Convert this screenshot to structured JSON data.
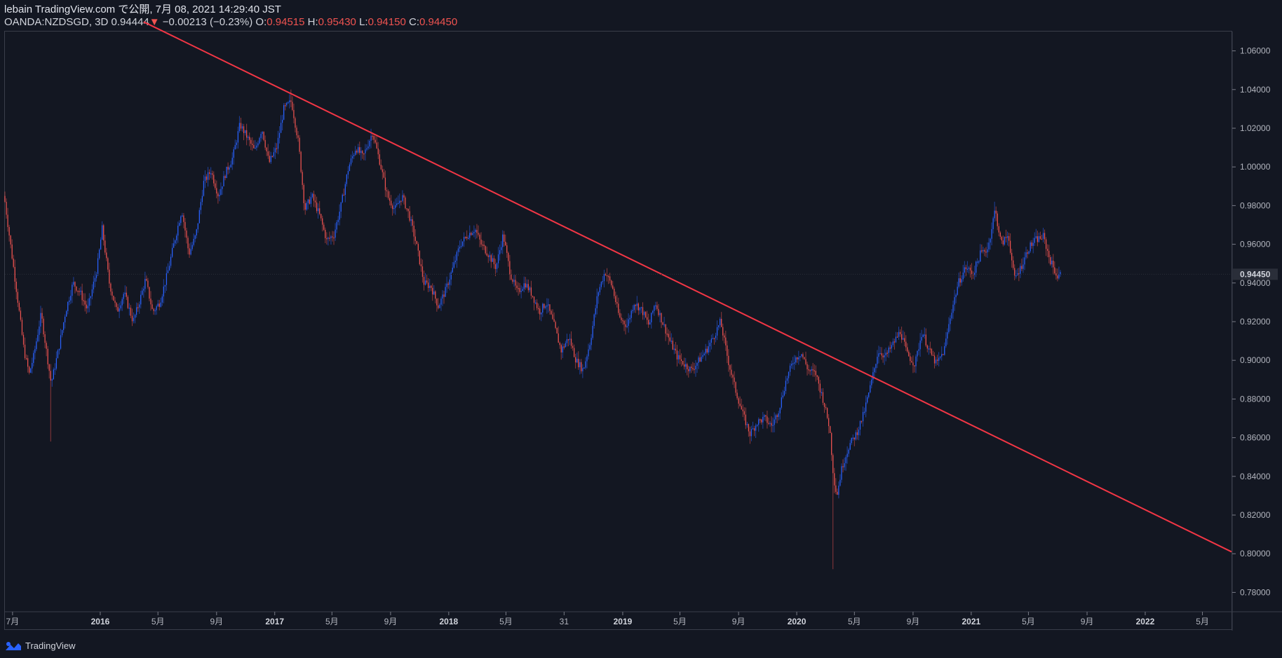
{
  "header": {
    "line1": "lebain TradingView.com で公開, 7月 08, 2021 14:29:40 JST",
    "symbol": "OANDA:NZDSGD, 3D",
    "last": "0.94444",
    "change_arrow": "▼",
    "change": "−0.00213 (−0.23%)",
    "o_label": "O:",
    "o": "0.94515",
    "h_label": "H:",
    "h": "0.95430",
    "l_label": "L:",
    "l": "0.94150",
    "c_label": "C:",
    "c": "0.94450"
  },
  "footer": {
    "brand": "TradingView",
    "logo_icon": "tradingview-logo-icon"
  },
  "colors": {
    "background": "#131722",
    "up": "#2962ff",
    "down": "#ef5350",
    "trendline": "#f23645",
    "axis_text": "#b2b5be"
  },
  "chart_data": {
    "type": "candlestick",
    "symbol": "OANDA:NZDSGD",
    "interval": "3D",
    "ylim": [
      0.77,
      1.07
    ],
    "yticks": [
      "1.06000",
      "1.04000",
      "1.02000",
      "1.00000",
      "0.98000",
      "0.96000",
      "0.94000",
      "0.92000",
      "0.90000",
      "0.88000",
      "0.86000",
      "0.84000",
      "0.82000",
      "0.80000",
      "0.78000"
    ],
    "last_price_label": "0.94450",
    "last_price": 0.9445,
    "x_range": [
      "2015-06-15",
      "2022-07-01"
    ],
    "xticks": [
      {
        "label": "7月",
        "date": "2015-07-01",
        "bold": false
      },
      {
        "label": "2016",
        "date": "2016-01-01",
        "bold": true
      },
      {
        "label": "5月",
        "date": "2016-05-01",
        "bold": false
      },
      {
        "label": "9月",
        "date": "2016-09-01",
        "bold": false
      },
      {
        "label": "2017",
        "date": "2017-01-01",
        "bold": true
      },
      {
        "label": "5月",
        "date": "2017-05-01",
        "bold": false
      },
      {
        "label": "9月",
        "date": "2017-09-01",
        "bold": false
      },
      {
        "label": "2018",
        "date": "2018-01-01",
        "bold": true
      },
      {
        "label": "5月",
        "date": "2018-05-01",
        "bold": false
      },
      {
        "label": "31",
        "date": "2018-08-31",
        "bold": false
      },
      {
        "label": "2019",
        "date": "2019-01-01",
        "bold": true
      },
      {
        "label": "5月",
        "date": "2019-05-01",
        "bold": false
      },
      {
        "label": "9月",
        "date": "2019-09-01",
        "bold": false
      },
      {
        "label": "2020",
        "date": "2020-01-01",
        "bold": true
      },
      {
        "label": "5月",
        "date": "2020-05-01",
        "bold": false
      },
      {
        "label": "9月",
        "date": "2020-09-01",
        "bold": false
      },
      {
        "label": "2021",
        "date": "2021-01-01",
        "bold": true
      },
      {
        "label": "5月",
        "date": "2021-05-01",
        "bold": false
      },
      {
        "label": "9月",
        "date": "2021-09-01",
        "bold": false
      },
      {
        "label": "2022",
        "date": "2022-01-01",
        "bold": true
      },
      {
        "label": "5月",
        "date": "2022-05-01",
        "bold": false
      }
    ],
    "trendline": {
      "start": {
        "date": "2016-04-01",
        "price": 1.075
      },
      "end": {
        "date": "2022-07-01",
        "price": 0.801
      }
    },
    "close_path": [
      [
        "2015-06-15",
        0.982
      ],
      [
        "2015-06-25",
        0.963
      ],
      [
        "2015-07-10",
        0.935
      ],
      [
        "2015-07-25",
        0.905
      ],
      [
        "2015-08-05",
        0.893
      ],
      [
        "2015-08-15",
        0.903
      ],
      [
        "2015-08-30",
        0.924
      ],
      [
        "2015-09-10",
        0.905
      ],
      [
        "2015-09-20",
        0.888
      ],
      [
        "2015-10-05",
        0.905
      ],
      [
        "2015-10-20",
        0.925
      ],
      [
        "2015-11-05",
        0.94
      ],
      [
        "2015-11-20",
        0.935
      ],
      [
        "2015-12-05",
        0.926
      ],
      [
        "2015-12-25",
        0.947
      ],
      [
        "2016-01-05",
        0.968
      ],
      [
        "2016-01-20",
        0.94
      ],
      [
        "2016-02-05",
        0.925
      ],
      [
        "2016-02-20",
        0.935
      ],
      [
        "2016-03-10",
        0.92
      ],
      [
        "2016-03-25",
        0.932
      ],
      [
        "2016-04-05",
        0.942
      ],
      [
        "2016-04-20",
        0.925
      ],
      [
        "2016-05-05",
        0.93
      ],
      [
        "2016-05-20",
        0.944
      ],
      [
        "2016-06-05",
        0.962
      ],
      [
        "2016-06-20",
        0.978
      ],
      [
        "2016-07-05",
        0.955
      ],
      [
        "2016-07-20",
        0.965
      ],
      [
        "2016-08-05",
        0.992
      ],
      [
        "2016-08-20",
        0.998
      ],
      [
        "2016-09-05",
        0.985
      ],
      [
        "2016-09-20",
        0.997
      ],
      [
        "2016-10-05",
        1.005
      ],
      [
        "2016-10-20",
        1.022
      ],
      [
        "2016-11-05",
        1.015
      ],
      [
        "2016-11-20",
        1.008
      ],
      [
        "2016-12-05",
        1.02
      ],
      [
        "2016-12-20",
        1.002
      ],
      [
        "2017-01-05",
        1.01
      ],
      [
        "2017-01-20",
        1.03
      ],
      [
        "2017-02-05",
        1.034
      ],
      [
        "2017-02-20",
        1.012
      ],
      [
        "2017-03-05",
        0.978
      ],
      [
        "2017-03-20",
        0.985
      ],
      [
        "2017-04-05",
        0.975
      ],
      [
        "2017-04-20",
        0.962
      ],
      [
        "2017-05-05",
        0.965
      ],
      [
        "2017-05-20",
        0.98
      ],
      [
        "2017-06-05",
        1.0
      ],
      [
        "2017-06-20",
        1.01
      ],
      [
        "2017-07-05",
        1.005
      ],
      [
        "2017-07-25",
        1.018
      ],
      [
        "2017-08-10",
        1.002
      ],
      [
        "2017-08-25",
        0.985
      ],
      [
        "2017-09-10",
        0.978
      ],
      [
        "2017-09-25",
        0.985
      ],
      [
        "2017-10-10",
        0.975
      ],
      [
        "2017-10-25",
        0.96
      ],
      [
        "2017-11-10",
        0.94
      ],
      [
        "2017-11-25",
        0.938
      ],
      [
        "2017-12-10",
        0.928
      ],
      [
        "2017-12-25",
        0.936
      ],
      [
        "2018-01-10",
        0.948
      ],
      [
        "2018-01-25",
        0.96
      ],
      [
        "2018-02-10",
        0.965
      ],
      [
        "2018-02-25",
        0.968
      ],
      [
        "2018-03-10",
        0.96
      ],
      [
        "2018-03-25",
        0.955
      ],
      [
        "2018-04-10",
        0.948
      ],
      [
        "2018-04-25",
        0.965
      ],
      [
        "2018-05-10",
        0.945
      ],
      [
        "2018-05-25",
        0.935
      ],
      [
        "2018-06-10",
        0.94
      ],
      [
        "2018-06-25",
        0.934
      ],
      [
        "2018-07-10",
        0.925
      ],
      [
        "2018-07-25",
        0.93
      ],
      [
        "2018-08-10",
        0.918
      ],
      [
        "2018-08-25",
        0.905
      ],
      [
        "2018-09-10",
        0.912
      ],
      [
        "2018-09-25",
        0.9
      ],
      [
        "2018-10-10",
        0.895
      ],
      [
        "2018-10-25",
        0.91
      ],
      [
        "2018-11-10",
        0.935
      ],
      [
        "2018-11-25",
        0.946
      ],
      [
        "2018-12-10",
        0.938
      ],
      [
        "2018-12-25",
        0.922
      ],
      [
        "2019-01-10",
        0.918
      ],
      [
        "2019-01-25",
        0.93
      ],
      [
        "2019-02-10",
        0.926
      ],
      [
        "2019-02-25",
        0.918
      ],
      [
        "2019-03-10",
        0.93
      ],
      [
        "2019-03-25",
        0.92
      ],
      [
        "2019-04-10",
        0.91
      ],
      [
        "2019-04-25",
        0.902
      ],
      [
        "2019-05-10",
        0.898
      ],
      [
        "2019-05-25",
        0.895
      ],
      [
        "2019-06-10",
        0.9
      ],
      [
        "2019-06-25",
        0.905
      ],
      [
        "2019-07-10",
        0.912
      ],
      [
        "2019-07-25",
        0.92
      ],
      [
        "2019-08-10",
        0.9
      ],
      [
        "2019-08-25",
        0.885
      ],
      [
        "2019-09-10",
        0.872
      ],
      [
        "2019-09-25",
        0.862
      ],
      [
        "2019-10-10",
        0.868
      ],
      [
        "2019-10-25",
        0.87
      ],
      [
        "2019-11-10",
        0.866
      ],
      [
        "2019-11-25",
        0.875
      ],
      [
        "2019-12-10",
        0.89
      ],
      [
        "2019-12-25",
        0.9
      ],
      [
        "2020-01-10",
        0.904
      ],
      [
        "2020-01-25",
        0.895
      ],
      [
        "2020-02-10",
        0.893
      ],
      [
        "2020-02-25",
        0.88
      ],
      [
        "2020-03-10",
        0.865
      ],
      [
        "2020-03-18",
        0.84
      ],
      [
        "2020-03-25",
        0.83
      ],
      [
        "2020-04-05",
        0.845
      ],
      [
        "2020-04-20",
        0.856
      ],
      [
        "2020-05-05",
        0.862
      ],
      [
        "2020-05-20",
        0.872
      ],
      [
        "2020-06-05",
        0.888
      ],
      [
        "2020-06-20",
        0.905
      ],
      [
        "2020-07-05",
        0.902
      ],
      [
        "2020-07-20",
        0.908
      ],
      [
        "2020-08-05",
        0.915
      ],
      [
        "2020-08-20",
        0.903
      ],
      [
        "2020-09-05",
        0.898
      ],
      [
        "2020-09-20",
        0.915
      ],
      [
        "2020-10-05",
        0.905
      ],
      [
        "2020-10-20",
        0.898
      ],
      [
        "2020-11-05",
        0.905
      ],
      [
        "2020-11-20",
        0.925
      ],
      [
        "2020-12-05",
        0.94
      ],
      [
        "2020-12-20",
        0.948
      ],
      [
        "2021-01-05",
        0.945
      ],
      [
        "2021-01-20",
        0.955
      ],
      [
        "2021-02-05",
        0.958
      ],
      [
        "2021-02-20",
        0.978
      ],
      [
        "2021-03-05",
        0.96
      ],
      [
        "2021-03-20",
        0.965
      ],
      [
        "2021-04-01",
        0.942
      ],
      [
        "2021-04-15",
        0.948
      ],
      [
        "2021-05-01",
        0.958
      ],
      [
        "2021-05-15",
        0.962
      ],
      [
        "2021-06-01",
        0.964
      ],
      [
        "2021-06-15",
        0.952
      ],
      [
        "2021-07-01",
        0.943
      ],
      [
        "2021-07-08",
        0.9445
      ]
    ],
    "wick_extremes": [
      {
        "date": "2017-02-05",
        "high": 1.04
      },
      {
        "date": "2015-09-20",
        "low": 0.858
      },
      {
        "date": "2020-03-18",
        "low": 0.792
      },
      {
        "date": "2021-02-20",
        "high": 0.982
      }
    ]
  }
}
